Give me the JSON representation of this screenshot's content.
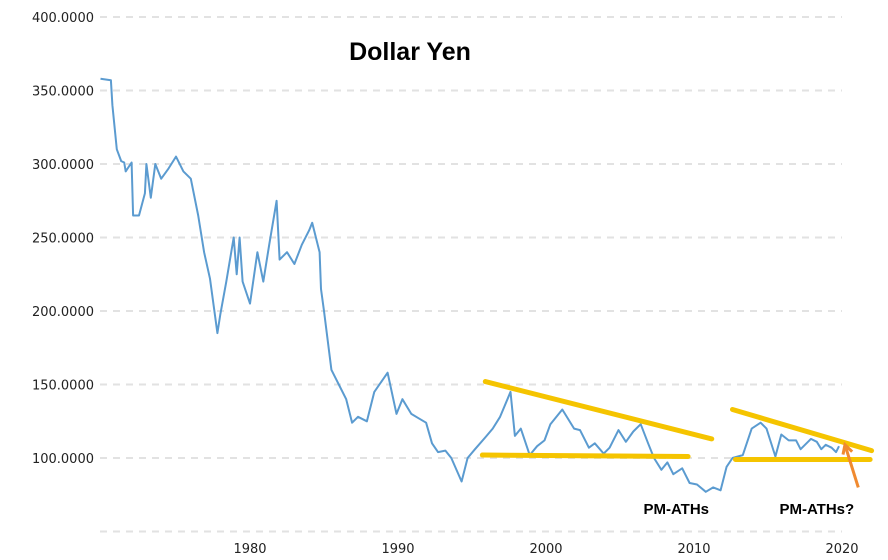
{
  "chart_data": {
    "type": "line",
    "title": "Dollar Yen",
    "xlabel": "",
    "ylabel": "",
    "xlim": [
      1970,
      2022.5
    ],
    "ylim": [
      50,
      400
    ],
    "grid": true,
    "x_ticks": [
      "1980",
      "1990",
      "2000",
      "2010",
      "2020"
    ],
    "x_tick_values": [
      1980,
      1990,
      2000,
      2010,
      2020
    ],
    "y_ticks": [
      "100.0000",
      "150.0000",
      "200.0000",
      "250.0000",
      "300.0000",
      "350.0000",
      "400.0000"
    ],
    "y_tick_values": [
      100,
      150,
      200,
      250,
      300,
      350,
      400
    ],
    "y_gridlines": [
      50,
      100,
      150,
      200,
      250,
      300,
      350,
      400
    ],
    "colors": {
      "line": "#5b9bd0",
      "trendline": "#f5c400",
      "arrow": "#f08a30",
      "grid": "#e2e2e2"
    },
    "series": [
      {
        "points": [
          [
            1969.9,
            358
          ],
          [
            1970.6,
            357
          ],
          [
            1970.7,
            340
          ],
          [
            1971.0,
            310
          ],
          [
            1971.3,
            302
          ],
          [
            1971.5,
            301
          ],
          [
            1971.6,
            295
          ],
          [
            1972.0,
            301
          ],
          [
            1972.1,
            265
          ],
          [
            1972.5,
            265
          ],
          [
            1972.9,
            280
          ],
          [
            1973.0,
            300
          ],
          [
            1973.3,
            277
          ],
          [
            1973.6,
            300
          ],
          [
            1974.0,
            290
          ],
          [
            1974.5,
            297
          ],
          [
            1975.0,
            305
          ],
          [
            1975.5,
            295
          ],
          [
            1976.0,
            290
          ],
          [
            1976.5,
            265
          ],
          [
            1976.9,
            240
          ],
          [
            1977.3,
            222
          ],
          [
            1977.8,
            185
          ],
          [
            1978.0,
            198
          ],
          [
            1978.4,
            220
          ],
          [
            1978.9,
            250
          ],
          [
            1979.1,
            225
          ],
          [
            1979.3,
            250
          ],
          [
            1979.5,
            220
          ],
          [
            1980.0,
            205
          ],
          [
            1980.5,
            240
          ],
          [
            1980.9,
            220
          ],
          [
            1981.3,
            245
          ],
          [
            1981.8,
            275
          ],
          [
            1982.0,
            235
          ],
          [
            1982.5,
            240
          ],
          [
            1983.0,
            232
          ],
          [
            1983.5,
            245
          ],
          [
            1984.0,
            255
          ],
          [
            1984.2,
            260
          ],
          [
            1984.7,
            240
          ],
          [
            1984.8,
            215
          ],
          [
            1985.0,
            200
          ],
          [
            1985.5,
            160
          ],
          [
            1986.0,
            150
          ],
          [
            1986.5,
            140
          ],
          [
            1986.9,
            124
          ],
          [
            1987.3,
            128
          ],
          [
            1987.9,
            125
          ],
          [
            1988.4,
            145
          ],
          [
            1989.3,
            158
          ],
          [
            1989.9,
            130
          ],
          [
            1990.3,
            140
          ],
          [
            1990.9,
            130
          ],
          [
            1991.4,
            127
          ],
          [
            1991.9,
            124
          ],
          [
            1992.3,
            110
          ],
          [
            1992.7,
            104
          ],
          [
            1993.2,
            105
          ],
          [
            1993.6,
            100
          ],
          [
            1994.3,
            84
          ],
          [
            1994.7,
            100
          ],
          [
            1995.2,
            106
          ],
          [
            1995.9,
            114
          ],
          [
            1996.4,
            120
          ],
          [
            1996.9,
            128
          ],
          [
            1997.6,
            145
          ],
          [
            1997.9,
            115
          ],
          [
            1998.3,
            120
          ],
          [
            1998.9,
            102
          ],
          [
            1999.4,
            108
          ],
          [
            1999.9,
            112
          ],
          [
            2000.3,
            123
          ],
          [
            2001.1,
            133
          ],
          [
            2001.9,
            120
          ],
          [
            2002.3,
            119
          ],
          [
            2002.9,
            107
          ],
          [
            2003.3,
            110
          ],
          [
            2003.9,
            103
          ],
          [
            2004.3,
            107
          ],
          [
            2004.9,
            119
          ],
          [
            2005.4,
            111
          ],
          [
            2005.9,
            118
          ],
          [
            2006.4,
            123
          ],
          [
            2006.9,
            110
          ],
          [
            2007.3,
            100
          ],
          [
            2007.8,
            92
          ],
          [
            2008.2,
            97
          ],
          [
            2008.6,
            89
          ],
          [
            2009.2,
            93
          ],
          [
            2009.7,
            83
          ],
          [
            2010.2,
            82
          ],
          [
            2010.8,
            77
          ],
          [
            2011.3,
            80
          ],
          [
            2011.8,
            78
          ],
          [
            2012.2,
            94
          ],
          [
            2012.6,
            100
          ],
          [
            2013.3,
            102
          ],
          [
            2013.9,
            120
          ],
          [
            2014.5,
            124
          ],
          [
            2014.9,
            120
          ],
          [
            2015.5,
            101
          ],
          [
            2015.9,
            116
          ],
          [
            2016.4,
            112
          ],
          [
            2016.9,
            112
          ],
          [
            2017.2,
            106
          ],
          [
            2017.9,
            113
          ],
          [
            2018.3,
            111
          ],
          [
            2018.6,
            106
          ],
          [
            2018.9,
            109
          ],
          [
            2019.3,
            107
          ],
          [
            2019.6,
            104
          ],
          [
            2019.8,
            108
          ]
        ]
      }
    ],
    "annotations": {
      "trendlines": [
        {
          "from": [
            1995.9,
            152
          ],
          "to": [
            2011.2,
            113
          ]
        },
        {
          "from": [
            1995.7,
            102
          ],
          "to": [
            2009.6,
            101
          ]
        },
        {
          "from": [
            2012.6,
            133
          ],
          "to": [
            2022.0,
            105
          ]
        },
        {
          "from": [
            2012.8,
            99
          ],
          "to": [
            2021.9,
            99
          ]
        }
      ],
      "arrow": {
        "from": [
          2021.1,
          80
        ],
        "to": [
          2020.2,
          109
        ]
      },
      "labels": [
        {
          "text": "PM-ATHs",
          "at": [
            2008.8,
            62
          ]
        },
        {
          "text": "PM-ATHs?",
          "at": [
            2018.3,
            62
          ]
        }
      ]
    }
  }
}
